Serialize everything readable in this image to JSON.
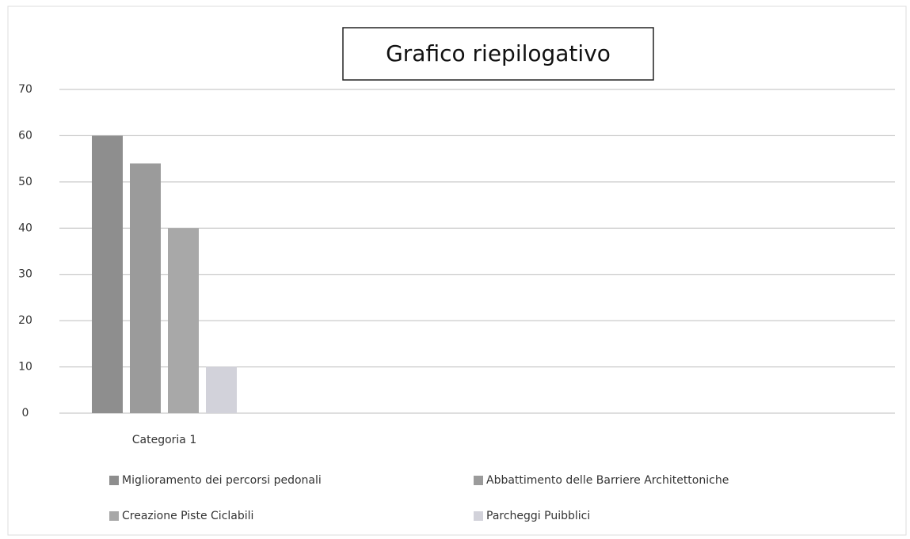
{
  "chart_data": {
    "type": "bar",
    "title": "Grafico riepilogativo",
    "categories": [
      "Categoria 1"
    ],
    "series": [
      {
        "name": "Miglioramento dei percorsi pedonali",
        "color": "#8e8e8e",
        "values": [
          60
        ]
      },
      {
        "name": "Abbattimento delle Barriere Architettoniche",
        "color": "#9b9b9b",
        "values": [
          54
        ]
      },
      {
        "name": "Creazione Piste Ciclabili",
        "color": "#a8a8a8",
        "values": [
          40
        ]
      },
      {
        "name": "Parcheggi Puibblici",
        "color": "#d2d2da",
        "values": [
          10
        ]
      }
    ],
    "ylim": [
      0,
      70
    ],
    "yticks": [
      0,
      10,
      20,
      30,
      40,
      50,
      60,
      70
    ],
    "grid": true,
    "legend": "bottom"
  }
}
